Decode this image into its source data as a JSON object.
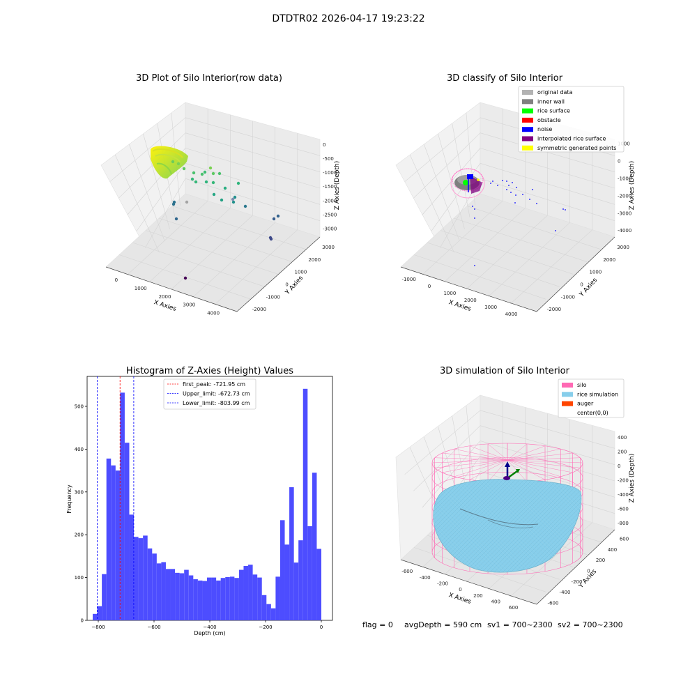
{
  "suptitle": "DTDTR02 2026-04-17 19:23:22",
  "footer": {
    "flag": "flag = 0",
    "avg_depth": "avgDepth = 590 cm",
    "sv1": "sv1 = 700~2300",
    "sv2": "sv2 = 700~2300"
  },
  "chart_data": [
    {
      "type": "scatter",
      "title": "3D Plot of Silo Interior(row data)",
      "xlabel": "X Axies",
      "ylabel": "Y Axies",
      "zlabel": "Z Axies (Depth)",
      "x_ticks": [
        "0",
        "1000",
        "2000",
        "3000",
        "4000"
      ],
      "y_ticks": [
        "-2000",
        "-1000",
        "0",
        "1000",
        "2000",
        "3000"
      ],
      "z_ticks": [
        "0",
        "-500",
        "-1000",
        "-1500",
        "-2000",
        "-2500",
        "-3000"
      ],
      "colormap": "viridis"
    },
    {
      "type": "scatter",
      "title": "3D classify of Silo Interior",
      "xlabel": "X Axies",
      "ylabel": "Y Axies",
      "zlabel": "Z Axies (Depth)",
      "x_ticks": [
        "-1000",
        "0",
        "1000",
        "2000",
        "3000",
        "4000"
      ],
      "y_ticks": [
        "-2000",
        "-1000",
        "0",
        "1000",
        "2000",
        "3000"
      ],
      "z_ticks": [
        "1000",
        "0",
        "-1000",
        "-2000",
        "-3000",
        "-4000"
      ],
      "legend": [
        {
          "label": "original data",
          "color": "#b3b3b3"
        },
        {
          "label": "inner wall",
          "color": "#808080"
        },
        {
          "label": "rice surface",
          "color": "#00ff00"
        },
        {
          "label": "obstacle",
          "color": "#ff0000"
        },
        {
          "label": "noise",
          "color": "#0000ff"
        },
        {
          "label": "interpolated rice surface",
          "color": "#800080"
        },
        {
          "label": "symmetric generated points",
          "color": "#ffff00"
        }
      ]
    },
    {
      "type": "bar",
      "title": "Histogram of Z-Axies (Height) Values",
      "xlabel": "Depth (cm)",
      "ylabel": "Frequency",
      "xlim": [
        -840,
        40
      ],
      "ylim": [
        0,
        570
      ],
      "x_ticks": [
        -800,
        -600,
        -400,
        -200,
        0
      ],
      "y_ticks": [
        0,
        100,
        200,
        300,
        400,
        500
      ],
      "bar_color": "#4d4dff",
      "bin_start": -820,
      "bin_width": 16.4,
      "values": [
        15,
        33,
        108,
        378,
        362,
        350,
        532,
        415,
        247,
        195,
        192,
        198,
        168,
        156,
        133,
        136,
        120,
        120,
        111,
        110,
        118,
        105,
        96,
        93,
        92,
        100,
        100,
        93,
        99,
        101,
        102,
        99,
        118,
        127,
        130,
        107,
        100,
        59,
        38,
        28,
        102,
        234,
        177,
        311,
        135,
        187,
        541,
        220,
        345,
        167
      ],
      "vlines": [
        {
          "x": -721.95,
          "label": "first_peak: -721.95 cm",
          "color": "#ff0000"
        },
        {
          "x": -672.73,
          "label": "Upper_limit: -672.73 cm",
          "color": "#0000ff"
        },
        {
          "x": -803.99,
          "label": "Lower_limit: -803.99 cm",
          "color": "#0000ff"
        }
      ]
    },
    {
      "type": "scatter",
      "title": "3D simulation of Silo Interior",
      "xlabel": "X Axies",
      "ylabel": "Y Axies",
      "zlabel": "Z Axies (Depth)",
      "x_ticks": [
        "-600",
        "-400",
        "-200",
        "0",
        "200",
        "400",
        "600"
      ],
      "y_ticks": [
        "-600",
        "-400",
        "-200",
        "0",
        "200",
        "400",
        "600"
      ],
      "z_ticks": [
        "400",
        "200",
        "0",
        "-200",
        "-400",
        "-600",
        "-800"
      ],
      "legend": [
        {
          "label": "silo",
          "color": "#ff69b4"
        },
        {
          "label": "rice simulation",
          "color": "#87ceeb"
        },
        {
          "label": "auger",
          "color": "#ff4500"
        },
        {
          "label": "center(0,0)",
          "color": "#ffffff"
        }
      ]
    }
  ]
}
